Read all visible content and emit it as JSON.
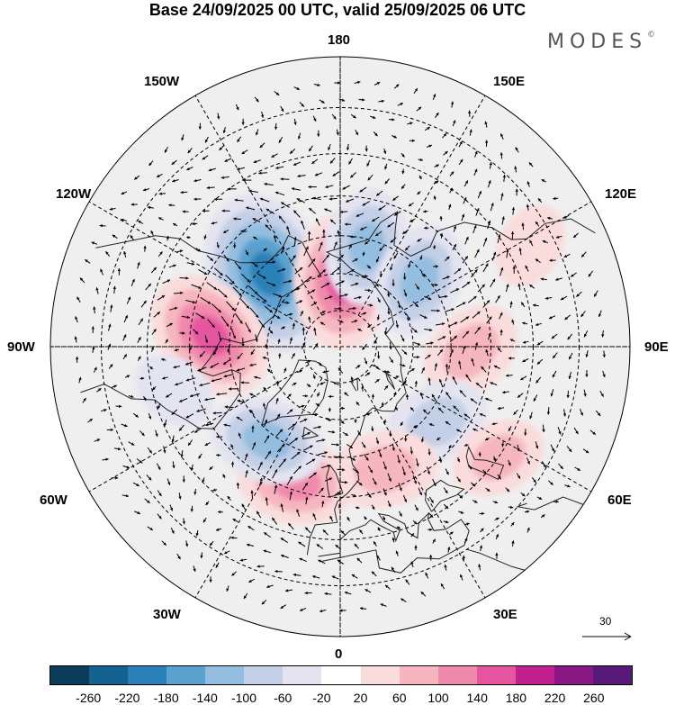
{
  "title": "Base 24/09/2025 00 UTC, valid 25/09/2025 06 UTC",
  "brand": "MODES",
  "brand_mark": "©",
  "longitude_labels": {
    "lon_180": "180",
    "lon_150W": "150W",
    "lon_150E": "150E",
    "lon_120W": "120W",
    "lon_120E": "120E",
    "lon_90W": "90W",
    "lon_90E": "90E",
    "lon_60W": "60W",
    "lon_60E": "60E",
    "lon_30W": "30W",
    "lon_30E": "30E",
    "lon_0": "0"
  },
  "reference_vector": "30",
  "colorbar": {
    "colors": [
      "#0d3b5a",
      "#14628f",
      "#2a81b8",
      "#5aa1cf",
      "#94bee0",
      "#c2cfe6",
      "#e4e4f1",
      "#ffffff",
      "#fadcdc",
      "#f6b6c0",
      "#f08aac",
      "#e656a0",
      "#c2208f",
      "#8a1783",
      "#581a78"
    ],
    "ticks": [
      "-260",
      "-220",
      "-180",
      "-140",
      "-100",
      "-60",
      "-20",
      "20",
      "60",
      "100",
      "140",
      "180",
      "220",
      "260"
    ]
  },
  "anomalies": [
    {
      "lat": 62,
      "lon": -135,
      "value": -200
    },
    {
      "lat": 72,
      "lon": 178,
      "value": 140
    },
    {
      "lat": 62,
      "lon": 165,
      "value": -100
    },
    {
      "lat": 62,
      "lon": 130,
      "value": -100
    },
    {
      "lat": 55,
      "lon": -95,
      "value": 140
    },
    {
      "lat": 55,
      "lon": 88,
      "value": 80
    },
    {
      "lat": 57,
      "lon": 52,
      "value": -80
    },
    {
      "lat": 55,
      "lon": 20,
      "value": 80
    },
    {
      "lat": 52,
      "lon": -18,
      "value": 100
    },
    {
      "lat": 58,
      "lon": -38,
      "value": -100
    },
    {
      "lat": 40,
      "lon": 55,
      "value": 60
    },
    {
      "lat": 35,
      "lon": 118,
      "value": 40
    },
    {
      "lat": 45,
      "lon": -75,
      "value": -40
    }
  ]
}
